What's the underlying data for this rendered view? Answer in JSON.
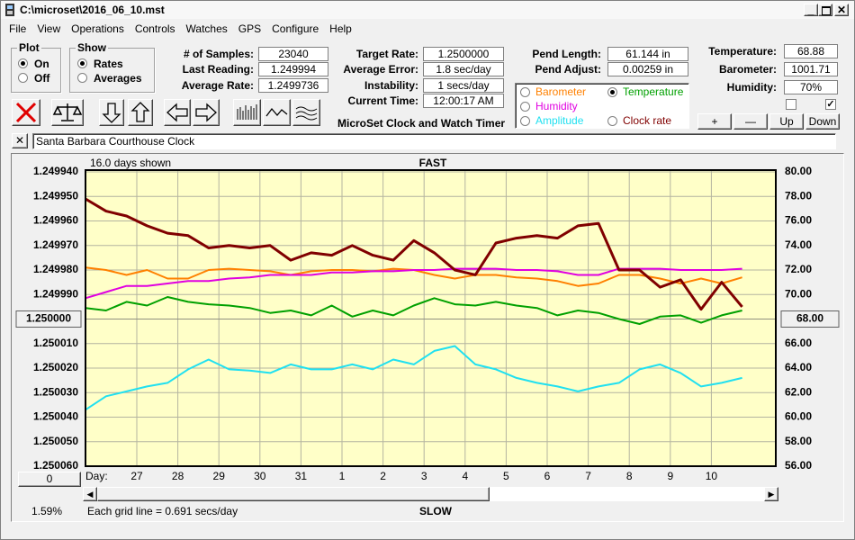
{
  "window": {
    "title": "C:\\microset\\2016_06_10.mst"
  },
  "menu": [
    "File",
    "View",
    "Operations",
    "Controls",
    "Watches",
    "GPS",
    "Configure",
    "Help"
  ],
  "plot_group": {
    "title": "Plot",
    "options": [
      "On",
      "Off"
    ],
    "selected": 0
  },
  "show_group": {
    "title": "Show",
    "options": [
      "Rates",
      "Averages"
    ],
    "selected": 0
  },
  "readouts": [
    [
      {
        "label": "# of Samples:",
        "value": "23040"
      },
      {
        "label": "Last Reading:",
        "value": "1.249994"
      },
      {
        "label": "Average Rate:",
        "value": "1.2499736"
      }
    ],
    [
      {
        "label": "Target Rate:",
        "value": "1.2500000"
      },
      {
        "label": "Average Error:",
        "value": "1.8 sec/day"
      },
      {
        "label": "Instability:",
        "value": "1 secs/day"
      },
      {
        "label": "Current Time:",
        "value": "12:00:17 AM"
      }
    ],
    [
      {
        "label": "Pend Length:",
        "value": "61.144 in"
      },
      {
        "label": "Pend Adjust:",
        "value": "0.00259 in"
      }
    ],
    [
      {
        "label": "Temperature:",
        "value": "68.88"
      },
      {
        "label": "Barometer:",
        "value": "1001.71"
      },
      {
        "label": "Humidity:",
        "value": "70%"
      }
    ]
  ],
  "app_title": "MicroSet Clock and Watch Timer",
  "clock_name": "Santa Barbara Courthouse Clock",
  "buttons": [
    "+",
    "—",
    "Up",
    "Down"
  ],
  "checkboxes": [
    false,
    true
  ],
  "chart": {
    "type": "line",
    "days_shown": "16.0 days shown",
    "top_label": "FAST",
    "bottom_label": "SLOW",
    "x_label": "Day:",
    "scroll_button": "0",
    "percent": "1.59%",
    "grid_note": "Each grid line = 0.691 secs/day",
    "selected_series": 1,
    "x": [
      -1.25,
      -0.75,
      -0.25,
      0.25,
      0.75,
      1.25,
      1.75,
      2.25,
      2.75,
      3.25,
      3.75,
      4.25,
      4.75,
      5.25,
      5.75,
      6.25,
      6.75,
      7.25,
      7.75,
      8.25,
      8.75,
      9.25,
      9.75,
      10.25,
      10.75,
      11.25,
      11.75,
      12.25,
      12.75,
      13.25,
      13.75,
      14.25,
      14.75
    ],
    "xlim": [
      -1.25,
      15.57
    ],
    "xticks": [
      {
        "value": 0,
        "label": "27"
      },
      {
        "value": 1,
        "label": "28"
      },
      {
        "value": 2,
        "label": "29"
      },
      {
        "value": 3,
        "label": "30"
      },
      {
        "value": 4,
        "label": "31"
      },
      {
        "value": 5,
        "label": "1"
      },
      {
        "value": 6,
        "label": "2"
      },
      {
        "value": 7,
        "label": "3"
      },
      {
        "value": 8,
        "label": "4"
      },
      {
        "value": 9,
        "label": "5"
      },
      {
        "value": 10,
        "label": "6"
      },
      {
        "value": 11,
        "label": "7"
      },
      {
        "value": 12,
        "label": "8"
      },
      {
        "value": 13,
        "label": "9"
      },
      {
        "value": 14,
        "label": "10"
      }
    ],
    "ylim": [
      1.25006,
      1.24994
    ],
    "yticks": [
      {
        "value": 1.24994,
        "label": "1.249940"
      },
      {
        "value": 1.24995,
        "label": "1.249950"
      },
      {
        "value": 1.24996,
        "label": "1.249960"
      },
      {
        "value": 1.24997,
        "label": "1.249970"
      },
      {
        "value": 1.24998,
        "label": "1.249980"
      },
      {
        "value": 1.24999,
        "label": "1.249990"
      },
      {
        "value": 1.25001,
        "label": "1.250010"
      },
      {
        "value": 1.25002,
        "label": "1.250020"
      },
      {
        "value": 1.25003,
        "label": "1.250030"
      },
      {
        "value": 1.25004,
        "label": "1.250040"
      },
      {
        "value": 1.25005,
        "label": "1.250050"
      },
      {
        "value": 1.25006,
        "label": "1.250060"
      }
    ],
    "y_reference": {
      "value": 1.25,
      "label": "1.250000"
    },
    "y2lim": [
      56,
      80
    ],
    "y2ticks": [
      {
        "value": 80,
        "label": "80.00"
      },
      {
        "value": 78,
        "label": "78.00"
      },
      {
        "value": 76,
        "label": "76.00"
      },
      {
        "value": 74,
        "label": "74.00"
      },
      {
        "value": 72,
        "label": "72.00"
      },
      {
        "value": 70,
        "label": "70.00"
      },
      {
        "value": 66,
        "label": "66.00"
      },
      {
        "value": 64,
        "label": "64.00"
      },
      {
        "value": 62,
        "label": "62.00"
      },
      {
        "value": 60,
        "label": "60.00"
      },
      {
        "value": 58,
        "label": "58.00"
      },
      {
        "value": 56,
        "label": "56.00"
      }
    ],
    "y2_reference": {
      "value": 68,
      "label": "68.00"
    },
    "grid": true,
    "series": [
      {
        "name": "Barometer",
        "color": "#ff8000",
        "axis": "y2",
        "values": [
          72.2,
          72.0,
          71.6,
          72.0,
          71.3,
          71.3,
          72.0,
          72.1,
          72.0,
          71.9,
          71.6,
          71.9,
          72.0,
          72.0,
          71.9,
          72.1,
          72.0,
          71.6,
          71.3,
          71.6,
          71.6,
          71.4,
          71.3,
          71.1,
          70.7,
          70.9,
          71.6,
          71.6,
          71.3,
          70.9,
          71.3,
          70.9,
          71.4
        ]
      },
      {
        "name": "Temperature",
        "color": "#00a000",
        "axis": "y2",
        "values": [
          68.9,
          68.7,
          69.4,
          69.1,
          69.8,
          69.4,
          69.2,
          69.1,
          68.9,
          68.5,
          68.7,
          68.3,
          69.1,
          68.2,
          68.7,
          68.3,
          69.1,
          69.7,
          69.2,
          69.1,
          69.4,
          69.1,
          68.9,
          68.3,
          68.7,
          68.5,
          68.0,
          67.6,
          68.2,
          68.3,
          67.7,
          68.3,
          68.7
        ]
      },
      {
        "name": "Humidity",
        "color": "#e000e0",
        "axis": "y2",
        "values": [
          69.7,
          70.2,
          70.7,
          70.7,
          70.9,
          71.1,
          71.1,
          71.3,
          71.4,
          71.6,
          71.6,
          71.6,
          71.8,
          71.8,
          71.9,
          71.9,
          72.0,
          72.0,
          72.1,
          72.1,
          72.1,
          72.0,
          72.0,
          71.9,
          71.6,
          71.6,
          72.1,
          72.1,
          72.1,
          72.0,
          72.0,
          72.0,
          72.1
        ]
      },
      {
        "name": "Amplitude",
        "color": "#20e0f0",
        "axis": "y2",
        "values": [
          60.6,
          61.7,
          62.1,
          62.5,
          62.8,
          63.9,
          64.7,
          63.9,
          63.8,
          63.6,
          64.3,
          63.9,
          63.9,
          64.3,
          63.9,
          64.7,
          64.3,
          65.4,
          65.8,
          64.3,
          63.9,
          63.2,
          62.8,
          62.5,
          62.1,
          62.5,
          62.8,
          63.9,
          64.3,
          63.6,
          62.5,
          62.8,
          63.2
        ]
      },
      {
        "name": "Clock rate",
        "color": "#800000",
        "axis": "y",
        "values": [
          1.249951,
          1.249956,
          1.249958,
          1.249962,
          1.249965,
          1.249966,
          1.249971,
          1.24997,
          1.249971,
          1.24997,
          1.249976,
          1.249973,
          1.249974,
          1.24997,
          1.249974,
          1.249976,
          1.249968,
          1.249973,
          1.24998,
          1.249982,
          1.249969,
          1.249967,
          1.249966,
          1.249967,
          1.249962,
          1.249961,
          1.24998,
          1.24998,
          1.249987,
          1.249984,
          1.249996,
          1.249985,
          1.249995
        ]
      }
    ]
  }
}
